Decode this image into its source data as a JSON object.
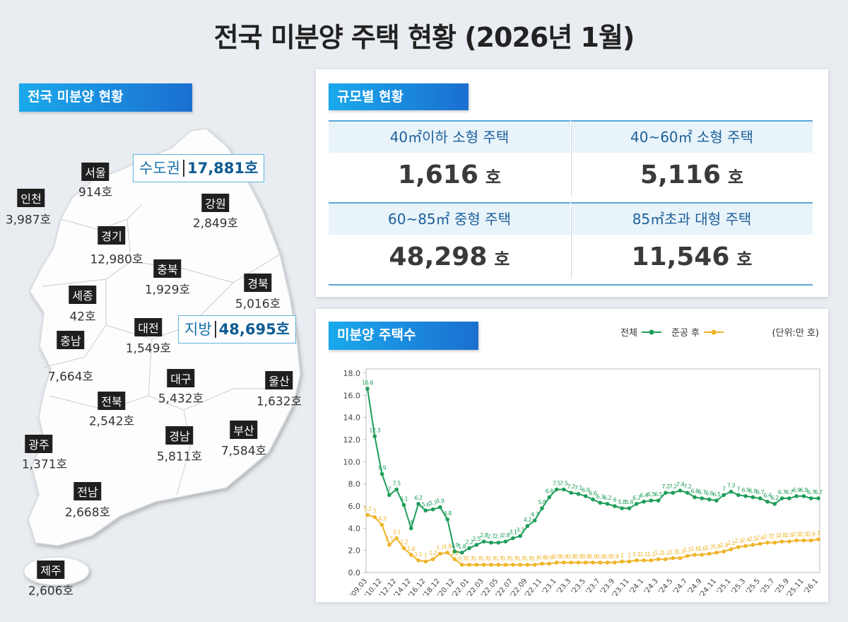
{
  "title": "전국 미분양 주택 현황  (2026년 1월)",
  "map": {
    "heading": "전국 미분양 현황",
    "regions": [
      {
        "name": "서울",
        "value": "914호"
      },
      {
        "name": "인천",
        "value": "3,987호"
      },
      {
        "name": "강원",
        "value": "2,849호"
      },
      {
        "name": "경기",
        "value": "12,980호"
      },
      {
        "name": "충북",
        "value": "1,929호"
      },
      {
        "name": "경북",
        "value": "5,016호"
      },
      {
        "name": "세종",
        "value": "42호"
      },
      {
        "name": "대전",
        "value": "1,549호"
      },
      {
        "name": "충남",
        "value": "7,664호"
      },
      {
        "name": "대구",
        "value": "5,432호"
      },
      {
        "name": "울산",
        "value": "1,632호"
      },
      {
        "name": "전북",
        "value": "2,542호"
      },
      {
        "name": "부산",
        "value": "7,584호"
      },
      {
        "name": "경남",
        "value": "5,811호"
      },
      {
        "name": "광주",
        "value": "1,371호"
      },
      {
        "name": "전남",
        "value": "2,668호"
      },
      {
        "name": "제주",
        "value": "2,606호"
      }
    ],
    "capital": {
      "label": "수도권",
      "value": "17,881호"
    },
    "local": {
      "label": "지방",
      "value": "48,695호"
    }
  },
  "size": {
    "heading": "규모별 현황",
    "cells": [
      {
        "label": "40㎡이하 소형 주택",
        "value": "1,616",
        "unit": "호"
      },
      {
        "label": "40~60㎡ 소형 주택",
        "value": "5,116",
        "unit": "호"
      },
      {
        "label": "60~85㎡ 중형 주택",
        "value": "48,298",
        "unit": "호"
      },
      {
        "label": "85㎡초과 대형 주택",
        "value": "11,546",
        "unit": "호"
      }
    ]
  },
  "chart_data": {
    "type": "line",
    "title": "미분양 주택수",
    "unit_note": "(단위:만 호)",
    "categories": [
      "'09.03",
      null,
      "'10.12",
      null,
      "'12.12",
      null,
      "'14.12",
      null,
      "'16.12",
      null,
      "'18.12",
      null,
      "'20.12",
      null,
      "'22.01",
      null,
      "'22.03",
      null,
      "'22.05",
      null,
      "'22.07",
      null,
      "'22.09",
      null,
      "'22.11",
      null,
      "'23.1",
      null,
      "'23.3",
      null,
      "'23.5",
      null,
      "'23.7",
      null,
      "'23.9",
      null,
      "'23.11",
      null,
      "'24.1",
      null,
      "'24.3",
      null,
      "'24.5",
      null,
      "'24.7",
      null,
      "'24.9",
      null,
      "'24.11",
      null,
      "'25.1",
      null,
      "'25.3",
      null,
      "'25.5",
      null,
      "'25.7",
      null,
      "'25.9",
      null,
      "'25.11",
      null,
      "'26.1"
    ],
    "series": [
      {
        "name": "전체",
        "color": "#1e9e5a",
        "values": [
          16.6,
          12.3,
          8.9,
          7.0,
          7.5,
          6.1,
          4.0,
          6.2,
          5.6,
          5.7,
          5.9,
          4.8,
          1.9,
          1.8,
          2.2,
          2.5,
          2.8,
          2.7,
          2.7,
          2.8,
          3.1,
          3.3,
          4.2,
          4.7,
          5.8,
          6.8,
          7.5,
          7.5,
          7.2,
          7.1,
          6.9,
          6.6,
          6.3,
          6.2,
          6.0,
          5.8,
          5.8,
          6.2,
          6.4,
          6.5,
          6.5,
          7.2,
          7.2,
          7.4,
          7.2,
          6.8,
          6.7,
          6.6,
          6.5,
          7.0,
          7.3,
          7.0,
          6.9,
          6.8,
          6.7,
          6.4,
          6.2,
          6.7,
          6.7,
          6.9,
          6.9,
          6.7,
          6.7
        ]
      },
      {
        "name": "준공 후",
        "color": "#f0b429",
        "values": [
          5.2,
          5.0,
          4.3,
          2.5,
          3.1,
          2.2,
          1.6,
          1.1,
          1.0,
          1.2,
          1.7,
          1.8,
          1.2,
          0.7,
          0.7,
          0.7,
          0.7,
          0.7,
          0.7,
          0.7,
          0.7,
          0.7,
          0.7,
          0.7,
          0.8,
          0.8,
          0.9,
          0.9,
          0.9,
          0.9,
          0.9,
          0.9,
          0.9,
          0.9,
          0.9,
          1.0,
          1.0,
          1.1,
          1.1,
          1.1,
          1.2,
          1.2,
          1.3,
          1.3,
          1.5,
          1.6,
          1.6,
          1.7,
          1.8,
          1.9,
          2.1,
          2.3,
          2.4,
          2.5,
          2.6,
          2.7,
          2.7,
          2.8,
          2.8,
          2.9,
          2.9,
          2.9,
          3.0
        ]
      }
    ],
    "ylim": [
      0,
      18
    ],
    "yticks": [
      {
        "value": 0,
        "label": "0.0"
      },
      {
        "value": 2,
        "label": "2.0"
      },
      {
        "value": 4,
        "label": "4.0"
      },
      {
        "value": 6,
        "label": "6.0"
      },
      {
        "value": 8,
        "label": "8.0"
      },
      {
        "value": 10,
        "label": "10.0"
      },
      {
        "value": 12,
        "label": "12.0"
      },
      {
        "value": 14,
        "label": "14.0"
      },
      {
        "value": 16,
        "label": "16.0"
      },
      {
        "value": 18,
        "label": "18.0"
      }
    ],
    "grid": false
  }
}
